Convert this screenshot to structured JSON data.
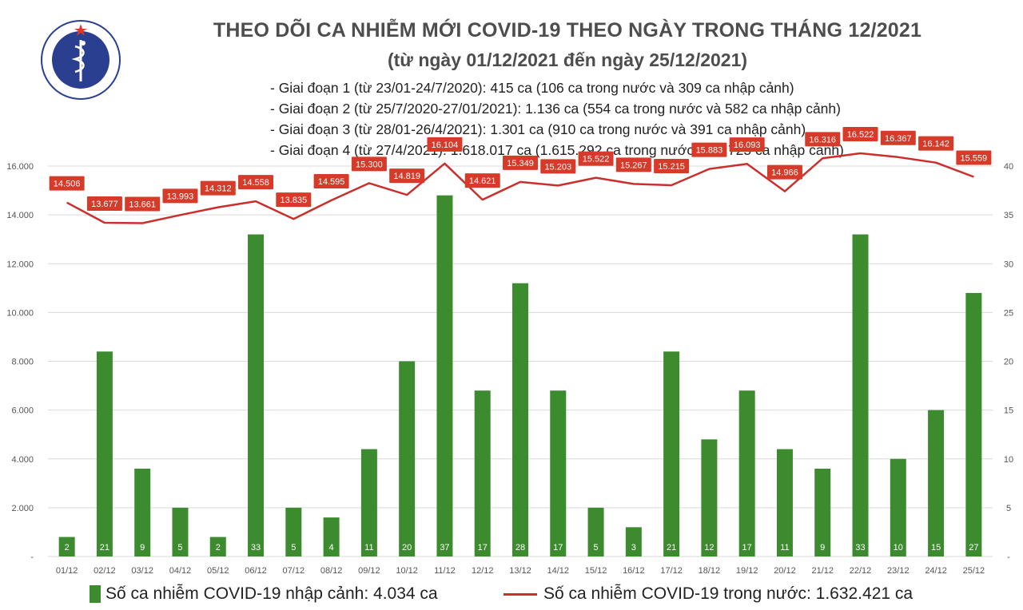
{
  "logo": {
    "text_top": "BỘ Y TẾ",
    "text_bottom": "MINISTRY OF HEALTH",
    "color": "#2a3f8f"
  },
  "title": "THEO DÕI CA NHIỄM MỚI COVID-19 THEO NGÀY TRONG THÁNG 12/2021",
  "subtitle": "(từ ngày 01/12/2021 đến ngày 25/12/2021)",
  "phases": [
    "- Giai đoạn 1 (từ 23/01-24/7/2020): 415 ca (106 ca trong nước và 309 ca nhập cảnh)",
    "- Giai đoạn 2 (từ 25/7/2020-27/01/2021): 1.136 ca (554 ca trong nước và 582 ca nhập cảnh)",
    "- Giai đoạn 3 (từ 28/01-26/4/2021): 1.301 ca (910 ca trong nước và 391 ca nhập cảnh)",
    "- Giai đoạn 4 (từ 27/4/2021): 1.618.017 ca (1.615.292 ca trong nước và 2.725 ca nhập cảnh)"
  ],
  "legend": {
    "bars": "Số ca nhiễm COVID-19 nhập cảnh: 4.034 ca",
    "line": "Số ca nhiễm COVID-19 trong nước: 1.632.421 ca"
  },
  "colors": {
    "bar": "#3d8b2f",
    "line": "#c9302c",
    "label_bg": "#d63b2a",
    "grid": "#d9d9d9",
    "axis_text": "#555555"
  },
  "chart_data": {
    "type": "bar",
    "categories": [
      "01/12",
      "02/12",
      "03/12",
      "04/12",
      "05/12",
      "06/12",
      "07/12",
      "08/12",
      "09/12",
      "10/12",
      "11/12",
      "12/12",
      "13/12",
      "14/12",
      "15/12",
      "16/12",
      "17/12",
      "18/12",
      "19/12",
      "20/12",
      "21/12",
      "22/12",
      "23/12",
      "24/12",
      "25/12"
    ],
    "series": [
      {
        "name": "Số ca nhiễm COVID-19 nhập cảnh",
        "type": "bar",
        "axis": "right",
        "values": [
          2,
          21,
          9,
          5,
          2,
          33,
          5,
          4,
          11,
          20,
          37,
          17,
          28,
          17,
          5,
          3,
          21,
          12,
          17,
          11,
          9,
          33,
          10,
          15,
          27
        ],
        "labels": [
          "2",
          "21",
          "9",
          "5",
          "2",
          "33",
          "5",
          "4",
          "11",
          "20",
          "37",
          "17",
          "28",
          "17",
          "5",
          "3",
          "21",
          "12",
          "17",
          "11",
          "9",
          "33",
          "10",
          "15",
          "27"
        ]
      },
      {
        "name": "Số ca nhiễm COVID-19 trong nước",
        "type": "line",
        "axis": "left",
        "values": [
          14506,
          13677,
          13661,
          13993,
          14312,
          14558,
          13835,
          14595,
          15300,
          14819,
          16104,
          14621,
          15349,
          15203,
          15522,
          15267,
          15215,
          15883,
          16093,
          14966,
          16316,
          16522,
          16367,
          16142,
          15559
        ],
        "labels": [
          "14.506",
          "13.677",
          "13.661",
          "13.993",
          "14.312",
          "14.558",
          "13.835",
          "14.595",
          "15.300",
          "14.819",
          "16.104",
          "14.621",
          "15.349",
          "15.203",
          "15.522",
          "15.267",
          "15.215",
          "15.883",
          "16.093",
          "14.966",
          "16.316",
          "16.522",
          "16.367",
          "16.142",
          "15.559"
        ]
      }
    ],
    "y_left": {
      "min": 0,
      "max": 16000,
      "ticks": [
        0,
        2000,
        4000,
        6000,
        8000,
        10000,
        12000,
        14000,
        16000
      ],
      "tick_labels": [
        "-",
        "2.000",
        "4.000",
        "6.000",
        "8.000",
        "10.000",
        "12.000",
        "14.000",
        "16.000"
      ]
    },
    "y_right": {
      "min": 0,
      "max": 40,
      "ticks": [
        0,
        5,
        10,
        15,
        20,
        25,
        30,
        35,
        40
      ],
      "tick_labels": [
        "-",
        "5",
        "10",
        "15",
        "20",
        "25",
        "30",
        "35",
        "40"
      ]
    },
    "grid": true,
    "legend_position": "bottom"
  }
}
